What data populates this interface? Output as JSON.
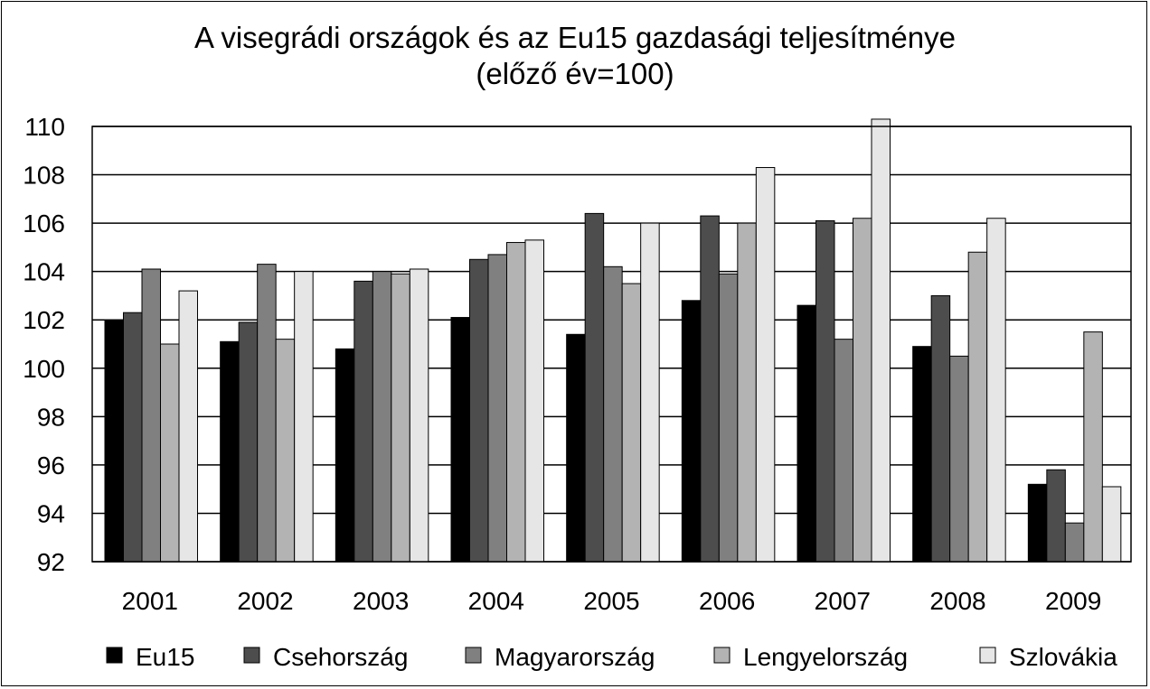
{
  "chart_data": {
    "type": "bar",
    "title": "A visegrádi országok és az Eu15 gazdasági teljesítménye",
    "subtitle": "(előző év=100)",
    "xlabel": "",
    "ylabel": "",
    "categories": [
      "2001",
      "2002",
      "2003",
      "2004",
      "2005",
      "2006",
      "2007",
      "2008",
      "2009"
    ],
    "ylim": [
      92,
      110
    ],
    "yticks": [
      92,
      94,
      96,
      98,
      100,
      102,
      104,
      106,
      108,
      110
    ],
    "grid": true,
    "legend_position": "bottom",
    "series": [
      {
        "name": "Eu15",
        "color": "#000000",
        "values": [
          102.0,
          101.1,
          100.8,
          102.1,
          101.4,
          102.8,
          102.6,
          100.9,
          95.2
        ]
      },
      {
        "name": "Csehország",
        "color": "#4d4d4d",
        "values": [
          102.3,
          101.9,
          103.6,
          104.5,
          106.4,
          106.3,
          106.1,
          103.0,
          95.8
        ]
      },
      {
        "name": "Magyarország",
        "color": "#808080",
        "values": [
          104.1,
          104.3,
          104.0,
          104.7,
          104.2,
          103.9,
          101.2,
          100.5,
          93.6
        ]
      },
      {
        "name": "Lengyelország",
        "color": "#b3b3b3",
        "values": [
          101.0,
          101.2,
          103.9,
          105.2,
          103.5,
          106.0,
          106.2,
          104.8,
          101.5
        ]
      },
      {
        "name": "Szlovákia",
        "color": "#e6e6e6",
        "values": [
          103.2,
          104.0,
          104.1,
          105.3,
          106.0,
          108.3,
          110.3,
          106.2,
          95.1
        ]
      }
    ]
  }
}
